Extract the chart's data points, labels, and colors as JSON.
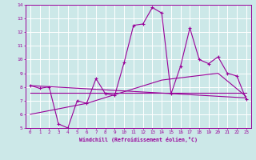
{
  "xlabel": "Windchill (Refroidissement éolien,°C)",
  "bg_color": "#cce8e8",
  "grid_color": "#ffffff",
  "line_color": "#990099",
  "xlim": [
    -0.5,
    23.5
  ],
  "ylim": [
    5,
    14
  ],
  "xtick_labels": [
    "0",
    "1",
    "2",
    "3",
    "4",
    "5",
    "6",
    "7",
    "8",
    "9",
    "10",
    "11",
    "12",
    "13",
    "14",
    "15",
    "16",
    "17",
    "18",
    "19",
    "20",
    "21",
    "22",
    "23"
  ],
  "ytick_labels": [
    "5",
    "6",
    "7",
    "8",
    "9",
    "10",
    "11",
    "12",
    "13",
    "14"
  ],
  "series1_x": [
    0,
    1,
    2,
    3,
    4,
    5,
    6,
    7,
    8,
    9,
    10,
    11,
    12,
    13,
    14,
    15,
    16,
    17,
    18,
    19,
    20,
    21,
    22,
    23
  ],
  "series1_y": [
    8.1,
    7.9,
    8.0,
    5.3,
    5.0,
    7.0,
    6.8,
    8.6,
    7.5,
    7.4,
    9.8,
    12.5,
    12.6,
    13.8,
    13.4,
    7.5,
    9.5,
    12.3,
    10.0,
    9.7,
    10.2,
    9.0,
    8.8,
    7.1
  ],
  "series2_x": [
    0,
    23
  ],
  "series2_y": [
    8.1,
    7.2
  ],
  "series3_x": [
    0,
    6,
    14,
    20,
    23
  ],
  "series3_y": [
    6.0,
    6.8,
    8.5,
    9.0,
    7.3
  ],
  "series4_x": [
    0,
    23
  ],
  "series4_y": [
    7.6,
    7.6
  ]
}
